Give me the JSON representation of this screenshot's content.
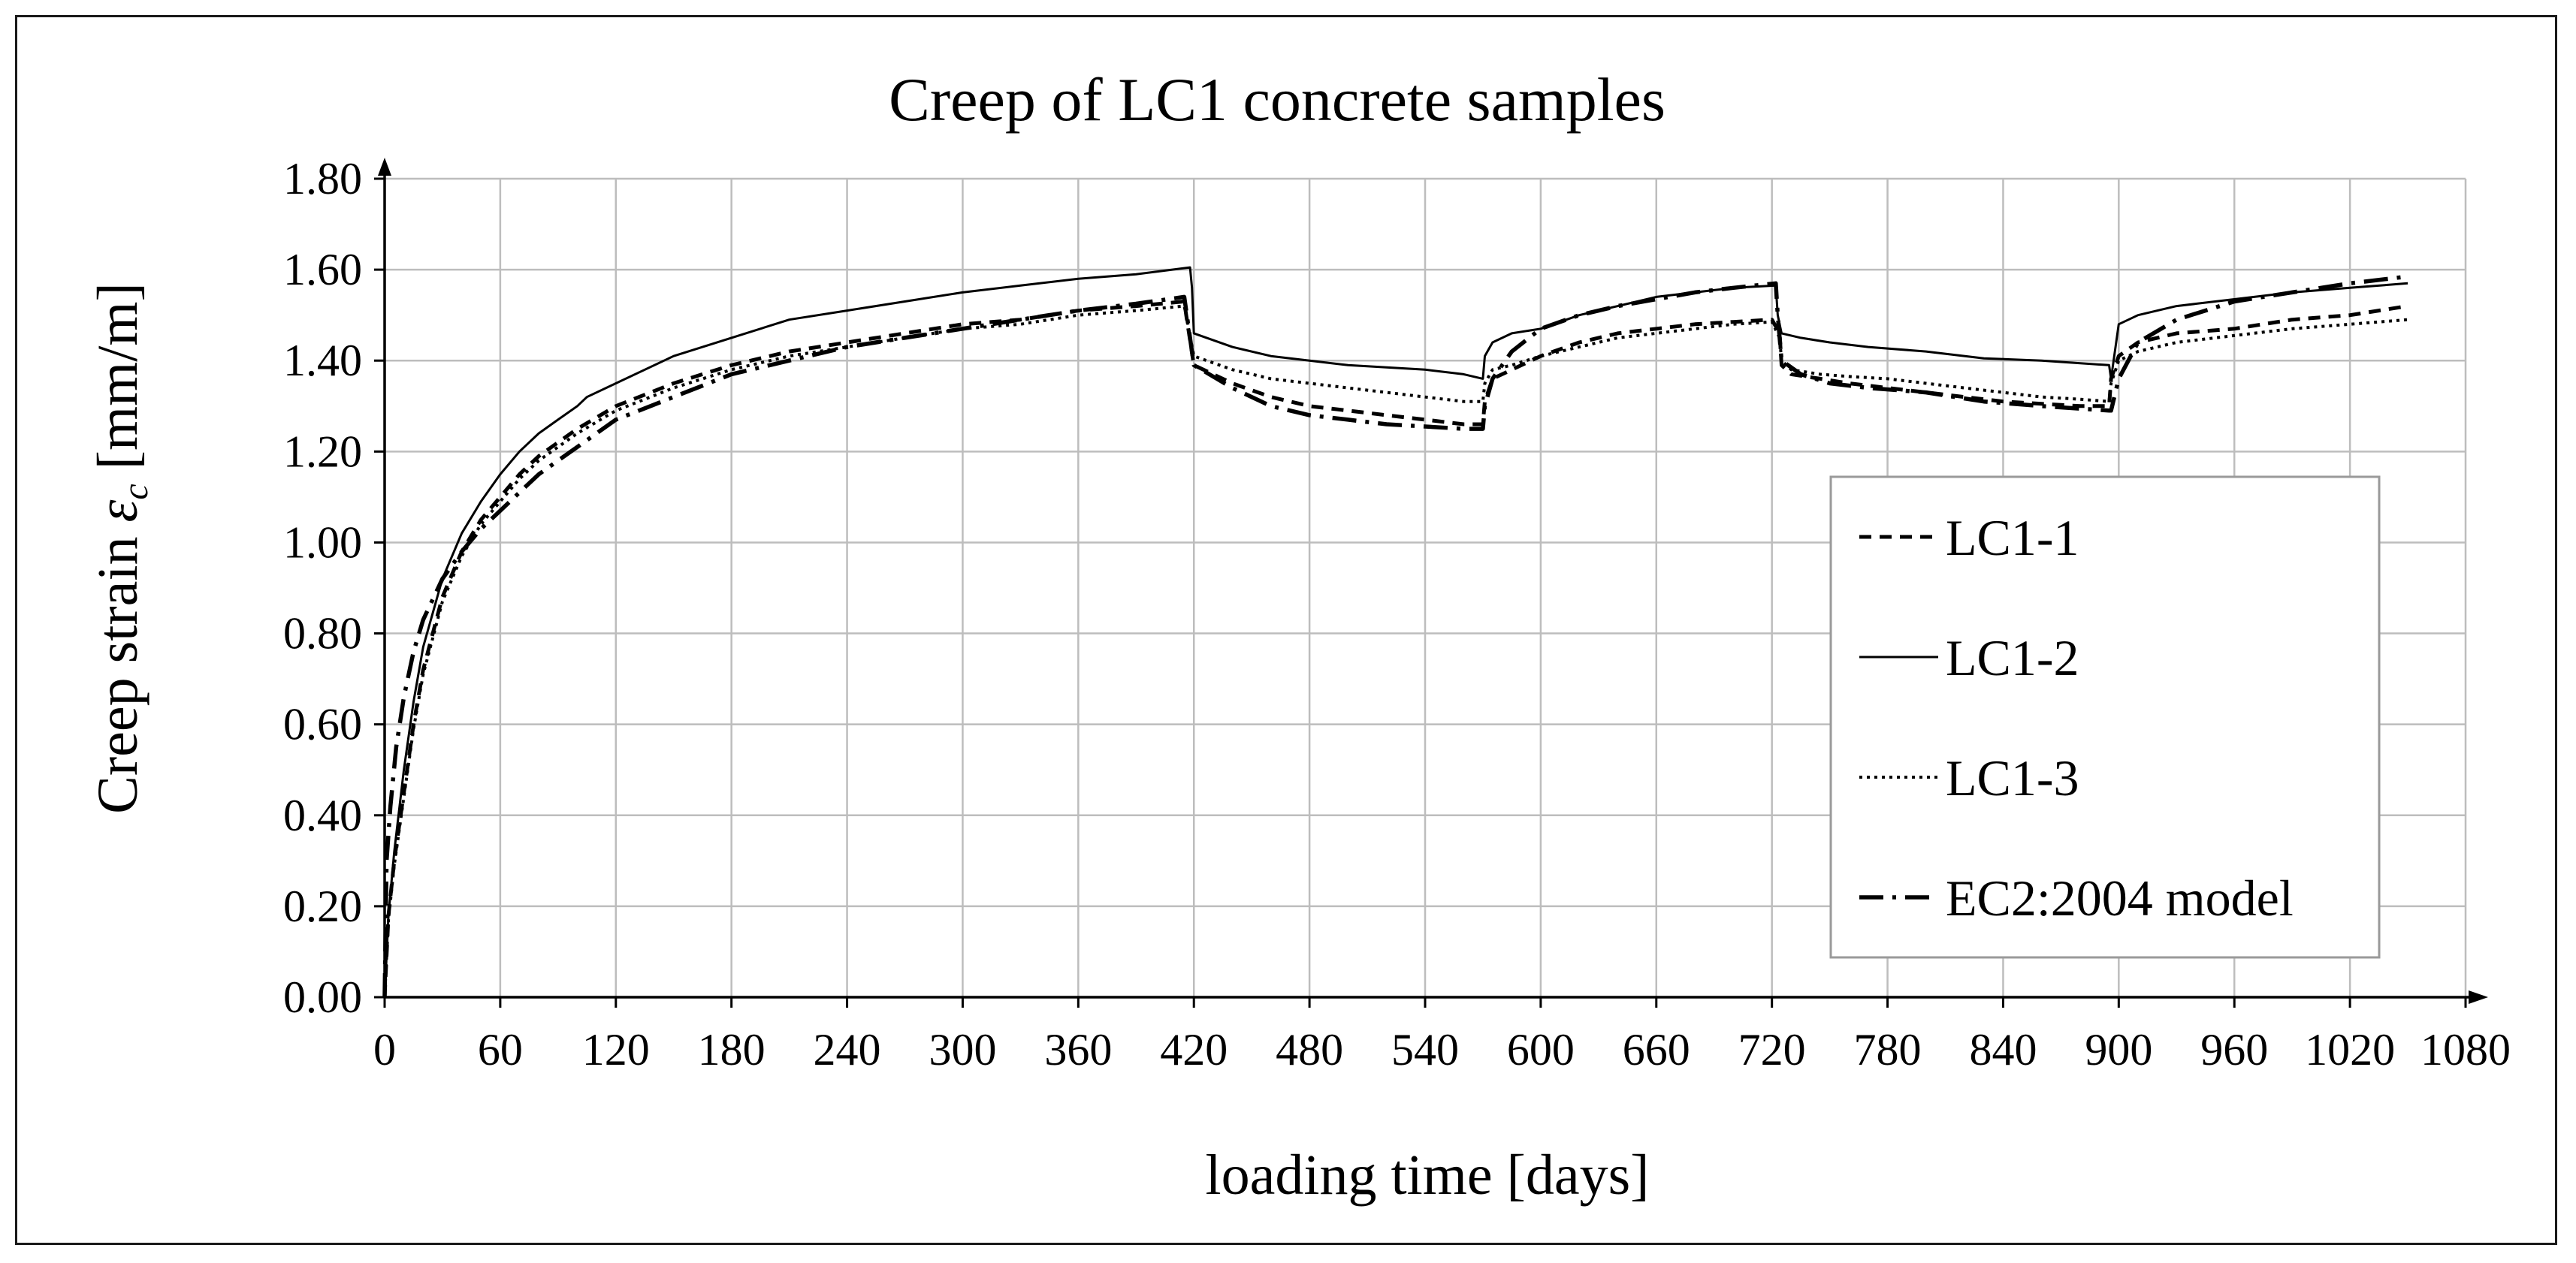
{
  "chart_data": {
    "type": "line",
    "title": "Creep of LC1 concrete samples",
    "xlabel": "loading time [days]",
    "ylabel_prefix": "Creep strain ",
    "ylabel_symbol": "ε",
    "ylabel_subscript": "c",
    "ylabel_suffix": " [mm/m]",
    "xlim": [
      0,
      1080
    ],
    "ylim": [
      0,
      1.8
    ],
    "xticks": [
      0,
      60,
      120,
      180,
      240,
      300,
      360,
      420,
      480,
      540,
      600,
      660,
      720,
      780,
      840,
      900,
      960,
      1020,
      1080
    ],
    "xtick_labels": [
      "0",
      "60",
      "120",
      "180",
      "240",
      "300",
      "360",
      "420",
      "480",
      "540",
      "600",
      "660",
      "720",
      "780",
      "840",
      "900",
      "960",
      "1020",
      "1080"
    ],
    "yticks": [
      0,
      0.2,
      0.4,
      0.6,
      0.8,
      1.0,
      1.2,
      1.4,
      1.6,
      1.8
    ],
    "ytick_labels": [
      "0.00",
      "0.20",
      "0.40",
      "0.60",
      "0.80",
      "1.00",
      "1.20",
      "1.40",
      "1.60",
      "1.80"
    ],
    "grid": true,
    "legend_position": "right",
    "series": [
      {
        "name": "LC1-1",
        "style": "dashed",
        "x": [
          0,
          2,
          5,
          10,
          15,
          20,
          30,
          40,
          50,
          60,
          70,
          80,
          90,
          100,
          120,
          150,
          180,
          210,
          240,
          270,
          300,
          330,
          360,
          390,
          415,
          416,
          420,
          440,
          460,
          480,
          500,
          520,
          540,
          560,
          570,
          571,
          575,
          585,
          600,
          620,
          640,
          660,
          680,
          700,
          720,
          724,
          725,
          730,
          745,
          760,
          780,
          800,
          820,
          840,
          860,
          880,
          895,
          896,
          900,
          910,
          930,
          960,
          990,
          1020,
          1050
        ],
        "y": [
          0,
          0.18,
          0.3,
          0.45,
          0.6,
          0.72,
          0.88,
          0.98,
          1.05,
          1.1,
          1.15,
          1.19,
          1.22,
          1.25,
          1.3,
          1.35,
          1.39,
          1.42,
          1.44,
          1.46,
          1.48,
          1.49,
          1.51,
          1.52,
          1.53,
          1.5,
          1.39,
          1.35,
          1.32,
          1.3,
          1.29,
          1.28,
          1.27,
          1.26,
          1.26,
          1.31,
          1.36,
          1.38,
          1.41,
          1.44,
          1.46,
          1.47,
          1.48,
          1.485,
          1.49,
          1.46,
          1.39,
          1.37,
          1.36,
          1.35,
          1.34,
          1.33,
          1.32,
          1.31,
          1.305,
          1.3,
          1.3,
          1.36,
          1.41,
          1.44,
          1.46,
          1.47,
          1.49,
          1.5,
          1.52
        ]
      },
      {
        "name": "LC1-2",
        "style": "solid",
        "x": [
          0,
          2,
          5,
          10,
          15,
          20,
          30,
          40,
          50,
          60,
          70,
          80,
          90,
          100,
          105,
          120,
          150,
          180,
          210,
          240,
          270,
          300,
          330,
          360,
          390,
          418,
          419,
          420,
          440,
          460,
          480,
          500,
          520,
          540,
          560,
          570,
          571,
          575,
          585,
          600,
          620,
          640,
          660,
          680,
          700,
          722,
          723,
          725,
          735,
          750,
          770,
          800,
          830,
          860,
          895,
          896,
          900,
          910,
          930,
          960,
          990,
          1020,
          1050
        ],
        "y": [
          0,
          0.18,
          0.32,
          0.5,
          0.65,
          0.77,
          0.92,
          1.02,
          1.09,
          1.15,
          1.2,
          1.24,
          1.27,
          1.3,
          1.32,
          1.35,
          1.41,
          1.45,
          1.49,
          1.51,
          1.53,
          1.55,
          1.565,
          1.58,
          1.59,
          1.605,
          1.56,
          1.46,
          1.43,
          1.41,
          1.4,
          1.39,
          1.385,
          1.38,
          1.37,
          1.36,
          1.41,
          1.44,
          1.46,
          1.47,
          1.5,
          1.52,
          1.54,
          1.55,
          1.56,
          1.565,
          1.5,
          1.46,
          1.45,
          1.44,
          1.43,
          1.42,
          1.405,
          1.4,
          1.39,
          1.36,
          1.48,
          1.5,
          1.52,
          1.535,
          1.55,
          1.56,
          1.57
        ]
      },
      {
        "name": "LC1-3",
        "style": "dotted",
        "x": [
          0,
          2,
          5,
          10,
          15,
          20,
          30,
          40,
          50,
          60,
          70,
          80,
          90,
          100,
          120,
          150,
          180,
          210,
          240,
          270,
          300,
          330,
          360,
          390,
          415,
          416,
          420,
          440,
          460,
          480,
          500,
          520,
          540,
          560,
          570,
          571,
          575,
          585,
          600,
          620,
          640,
          660,
          680,
          700,
          720,
          724,
          725,
          730,
          745,
          760,
          780,
          800,
          820,
          840,
          860,
          880,
          895,
          896,
          900,
          910,
          930,
          960,
          990,
          1020,
          1050
        ],
        "y": [
          0,
          0.17,
          0.29,
          0.44,
          0.59,
          0.71,
          0.87,
          0.97,
          1.04,
          1.09,
          1.14,
          1.18,
          1.21,
          1.24,
          1.29,
          1.34,
          1.38,
          1.41,
          1.43,
          1.45,
          1.47,
          1.48,
          1.5,
          1.51,
          1.52,
          1.5,
          1.41,
          1.38,
          1.36,
          1.35,
          1.34,
          1.33,
          1.32,
          1.31,
          1.31,
          1.35,
          1.38,
          1.39,
          1.41,
          1.43,
          1.45,
          1.46,
          1.47,
          1.48,
          1.485,
          1.45,
          1.4,
          1.38,
          1.37,
          1.365,
          1.36,
          1.35,
          1.34,
          1.33,
          1.32,
          1.315,
          1.31,
          1.35,
          1.4,
          1.42,
          1.44,
          1.455,
          1.47,
          1.48,
          1.49
        ]
      },
      {
        "name": "EC2:2004 model",
        "style": "dashdot",
        "x": [
          0,
          1,
          3,
          6,
          10,
          15,
          20,
          30,
          40,
          50,
          60,
          70,
          80,
          90,
          100,
          120,
          150,
          180,
          210,
          240,
          270,
          300,
          330,
          360,
          390,
          415,
          416,
          420,
          440,
          460,
          480,
          500,
          520,
          540,
          560,
          570,
          571,
          575,
          585,
          600,
          620,
          640,
          660,
          680,
          700,
          722,
          723,
          725,
          735,
          750,
          770,
          800,
          830,
          860,
          895,
          896,
          900,
          910,
          930,
          960,
          990,
          1020,
          1050
        ],
        "y": [
          0,
          0.3,
          0.42,
          0.55,
          0.66,
          0.76,
          0.83,
          0.92,
          0.98,
          1.03,
          1.07,
          1.11,
          1.15,
          1.18,
          1.21,
          1.27,
          1.32,
          1.37,
          1.4,
          1.43,
          1.45,
          1.47,
          1.49,
          1.51,
          1.525,
          1.54,
          1.51,
          1.39,
          1.34,
          1.3,
          1.28,
          1.27,
          1.26,
          1.255,
          1.25,
          1.25,
          1.3,
          1.36,
          1.42,
          1.47,
          1.5,
          1.52,
          1.535,
          1.55,
          1.56,
          1.57,
          1.5,
          1.4,
          1.37,
          1.35,
          1.34,
          1.33,
          1.31,
          1.3,
          1.29,
          1.29,
          1.36,
          1.44,
          1.49,
          1.53,
          1.55,
          1.57,
          1.585
        ]
      }
    ]
  }
}
